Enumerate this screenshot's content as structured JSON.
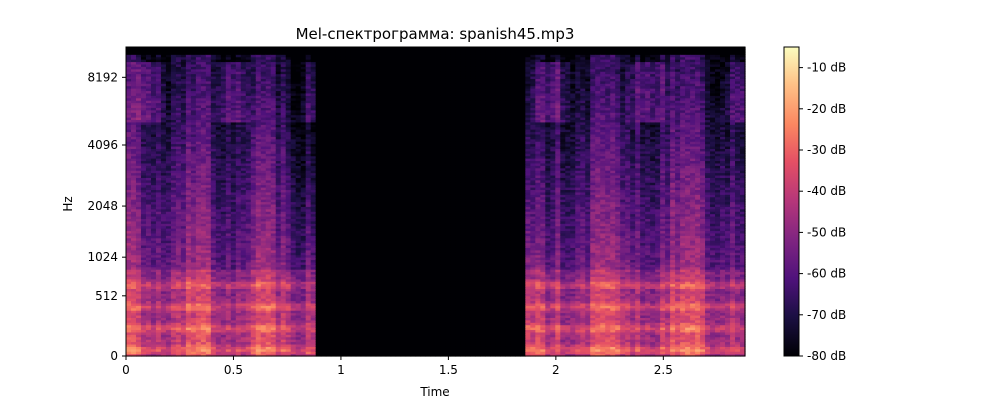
{
  "chart_data": {
    "type": "heatmap",
    "title": "Mel-спектрограмма: spanish45.mp3",
    "xlabel": "Time",
    "ylabel": "Hz",
    "x_range": [
      0,
      2.88
    ],
    "x_ticks": [
      0,
      0.5,
      1,
      1.5,
      2,
      2.5
    ],
    "x_tick_labels": [
      "0",
      "0.5",
      "1",
      "1.5",
      "2",
      "2.5"
    ],
    "y_scale": "mel",
    "y_ticks": [
      0,
      512,
      1024,
      2048,
      4096,
      8192
    ],
    "y_tick_labels": [
      "0",
      "512",
      "1024",
      "2048",
      "4096",
      "8192"
    ],
    "colormap": "magma",
    "colorbar": {
      "range_db": [
        -80,
        -5
      ],
      "ticks": [
        -10,
        -20,
        -30,
        -40,
        -50,
        -60,
        -70,
        -80
      ],
      "tick_labels": [
        "-10 dB",
        "-20 dB",
        "-30 dB",
        "-40 dB",
        "-50 dB",
        "-60 dB",
        "-70 dB",
        "-80 dB"
      ]
    },
    "segments": [
      {
        "time_start": 0,
        "time_end": 0.88,
        "description": "speech"
      },
      {
        "time_start": 0.88,
        "time_end": 1.86,
        "description": "silence (-80 dB)"
      },
      {
        "time_start": 1.86,
        "time_end": 2.88,
        "description": "speech"
      }
    ]
  }
}
